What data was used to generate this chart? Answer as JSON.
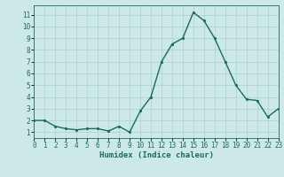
{
  "x": [
    0,
    1,
    2,
    3,
    4,
    5,
    6,
    7,
    8,
    9,
    10,
    11,
    12,
    13,
    14,
    15,
    16,
    17,
    18,
    19,
    20,
    21,
    22,
    23
  ],
  "y": [
    2,
    2,
    1.5,
    1.3,
    1.2,
    1.3,
    1.3,
    1.1,
    1.5,
    1.0,
    2.8,
    4.0,
    7.0,
    8.5,
    9.0,
    11.2,
    10.5,
    9.0,
    7.0,
    5.0,
    3.8,
    3.7,
    2.3,
    3.0
  ],
  "title": "",
  "xlabel": "Humidex (Indice chaleur)",
  "ylabel": "",
  "xlim": [
    0,
    23
  ],
  "ylim": [
    0.5,
    11.8
  ],
  "yticks": [
    1,
    2,
    3,
    4,
    5,
    6,
    7,
    8,
    9,
    10,
    11
  ],
  "xticks": [
    0,
    1,
    2,
    3,
    4,
    5,
    6,
    7,
    8,
    9,
    10,
    11,
    12,
    13,
    14,
    15,
    16,
    17,
    18,
    19,
    20,
    21,
    22,
    23
  ],
  "bg_color": "#cce8e8",
  "grid_color": "#aacfcf",
  "line_color": "#1a6b5e",
  "marker_color": "#1a6b5e",
  "tick_label_fontsize": 5.5,
  "xlabel_fontsize": 6.5,
  "line_width": 1.0,
  "marker_size": 2.5
}
